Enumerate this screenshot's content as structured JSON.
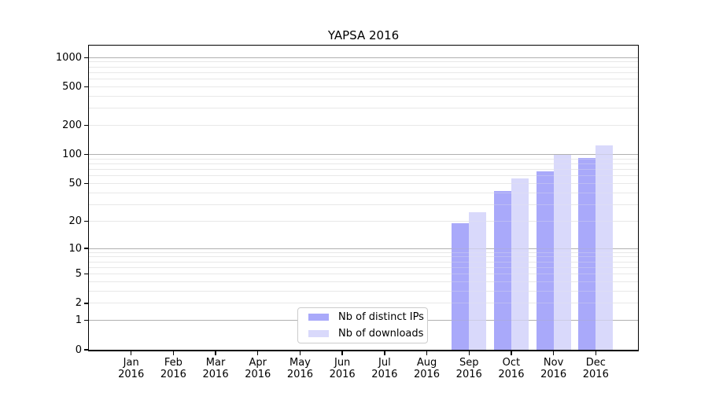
{
  "chart_data": {
    "type": "bar",
    "title": "YAPSA 2016",
    "year_label": "2016",
    "categories": [
      "Jan",
      "Feb",
      "Mar",
      "Apr",
      "May",
      "Jun",
      "Jul",
      "Aug",
      "Sep",
      "Oct",
      "Nov",
      "Dec"
    ],
    "series": [
      {
        "name": "Nb of distinct IPs",
        "color": "#a9a9fa",
        "values": [
          0,
          0,
          0,
          0,
          0,
          0,
          0,
          0,
          19,
          42,
          67,
          93
        ]
      },
      {
        "name": "Nb of downloads",
        "color": "#d9d9fb",
        "values": [
          0,
          0,
          0,
          0,
          0,
          0,
          0,
          0,
          25,
          57,
          100,
          125
        ]
      }
    ],
    "y_axis": {
      "scale": "log1p",
      "ticks": [
        0,
        1,
        2,
        5,
        10,
        20,
        50,
        100,
        200,
        500,
        1000
      ],
      "top_value": 1330,
      "major_grid_color": "#b0b0b0",
      "minor_grid_color": "#e8e8e8"
    },
    "legend": {
      "position": "bottom-center"
    },
    "grid": true,
    "xlabel": "",
    "ylabel": ""
  }
}
